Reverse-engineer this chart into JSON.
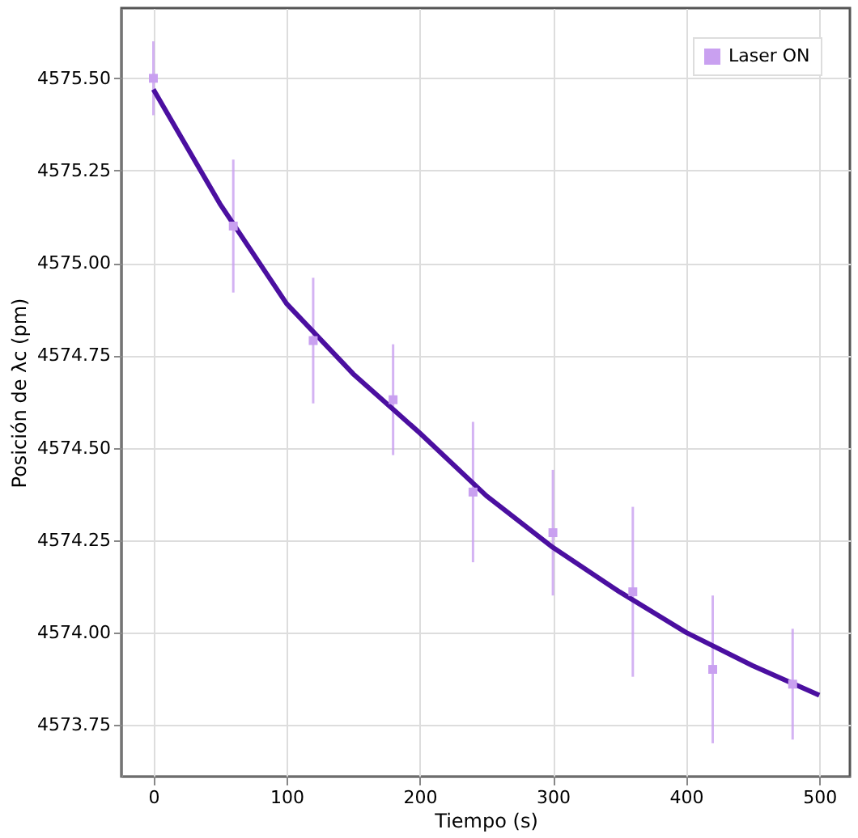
{
  "chart_data": {
    "type": "scatter",
    "xlabel": "Tiempo (s)",
    "ylabel": "Posición de λc (pm)",
    "xlim": [
      -24,
      523
    ],
    "xticks": [
      0,
      100,
      200,
      300,
      400,
      500
    ],
    "ylim": [
      4573.61,
      4575.69
    ],
    "yticks": [
      {
        "value": 4573.75,
        "label": "4573.75"
      },
      {
        "value": 4574.0,
        "label": "4574.00"
      },
      {
        "value": 4574.25,
        "label": "4574.25"
      },
      {
        "value": 4574.5,
        "label": "4574.50"
      },
      {
        "value": 4574.75,
        "label": "4574.75"
      },
      {
        "value": 4575.0,
        "label": "4575.00"
      },
      {
        "value": 4575.25,
        "label": "4575.25"
      },
      {
        "value": 4575.5,
        "label": "4575.50"
      }
    ],
    "grid": true,
    "legend": "top right",
    "series": [
      {
        "name": "Laser ON",
        "marker": "square",
        "color": "#c9a0f0",
        "x": [
          0,
          60,
          120,
          180,
          240,
          300,
          360,
          420,
          480
        ],
        "values": [
          4575.5,
          4575.1,
          4574.79,
          4574.63,
          4574.38,
          4574.27,
          4574.11,
          4573.9,
          4573.86
        ],
        "errors": [
          0.1,
          0.18,
          0.17,
          0.15,
          0.19,
          0.17,
          0.23,
          0.2,
          0.15
        ]
      },
      {
        "type": "line",
        "marker": "none",
        "color": "#4b0fa0",
        "line_style": "solid",
        "x": [
          0,
          50,
          100,
          150,
          200,
          250,
          300,
          350,
          400,
          450,
          500
        ],
        "values": [
          4575.47,
          4575.16,
          4574.89,
          4574.7,
          4574.54,
          4574.37,
          4574.23,
          4574.11,
          4574.0,
          4573.91,
          4573.83
        ]
      }
    ]
  }
}
